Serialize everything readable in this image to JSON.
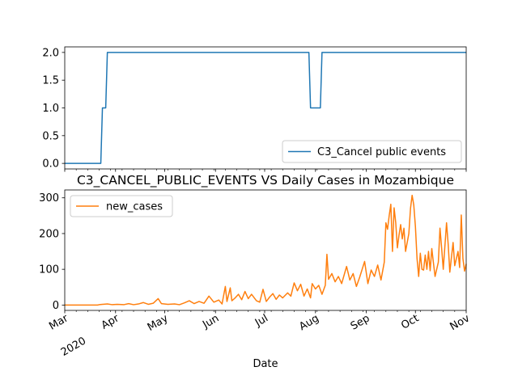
{
  "chart_data": [
    {
      "type": "line",
      "title": "",
      "xlabel": "",
      "ylabel": "",
      "ylim": [
        -0.1,
        2.1
      ],
      "yticks": [
        "0.0",
        "0.5",
        "1.0",
        "1.5",
        "2.0"
      ],
      "ytick_values": [
        0,
        0.5,
        1.0,
        1.5,
        2.0
      ],
      "legend_position": "lower-right",
      "series": [
        {
          "name": "C3_Cancel public events",
          "color": "#1f77b4",
          "points": [
            [
              "2020-03-01",
              0
            ],
            [
              "2020-03-23",
              0
            ],
            [
              "2020-03-24",
              1
            ],
            [
              "2020-03-26",
              1
            ],
            [
              "2020-03-27",
              2
            ],
            [
              "2020-07-28",
              2
            ],
            [
              "2020-07-29",
              1
            ],
            [
              "2020-08-04",
              1
            ],
            [
              "2020-08-05",
              2
            ],
            [
              "2020-11-01",
              2
            ]
          ]
        }
      ]
    },
    {
      "type": "line",
      "title": "C3_CANCEL_PUBLIC_EVENTS VS Daily Cases in Mozambique",
      "xlabel": "Date",
      "ylabel": "",
      "ylim": [
        -15,
        322
      ],
      "yticks": [
        "0",
        "100",
        "200",
        "300"
      ],
      "ytick_values": [
        0,
        100,
        200,
        300
      ],
      "xlim": [
        "2020-03-01",
        "2020-11-01"
      ],
      "xticks": [
        {
          "date": "2020-03-01",
          "label": "Mar",
          "sublabel": "2020"
        },
        {
          "date": "2020-04-01",
          "label": "Apr",
          "sublabel": ""
        },
        {
          "date": "2020-05-01",
          "label": "May",
          "sublabel": ""
        },
        {
          "date": "2020-06-01",
          "label": "Jun",
          "sublabel": ""
        },
        {
          "date": "2020-07-01",
          "label": "Jul",
          "sublabel": ""
        },
        {
          "date": "2020-08-01",
          "label": "Aug",
          "sublabel": ""
        },
        {
          "date": "2020-09-01",
          "label": "Sep",
          "sublabel": ""
        },
        {
          "date": "2020-10-01",
          "label": "Oct",
          "sublabel": ""
        },
        {
          "date": "2020-11-01",
          "label": "Nov",
          "sublabel": ""
        }
      ],
      "legend_position": "upper-left",
      "series": [
        {
          "name": "new_cases",
          "color": "#ff7f0e",
          "points": [
            [
              "2020-03-01",
              0
            ],
            [
              "2020-03-21",
              0
            ],
            [
              "2020-03-22",
              1
            ],
            [
              "2020-03-24",
              2
            ],
            [
              "2020-03-27",
              3
            ],
            [
              "2020-03-30",
              1
            ],
            [
              "2020-04-02",
              2
            ],
            [
              "2020-04-06",
              1
            ],
            [
              "2020-04-09",
              4
            ],
            [
              "2020-04-12",
              1
            ],
            [
              "2020-04-15",
              3
            ],
            [
              "2020-04-18",
              7
            ],
            [
              "2020-04-21",
              2
            ],
            [
              "2020-04-24",
              5
            ],
            [
              "2020-04-27",
              18
            ],
            [
              "2020-04-29",
              4
            ],
            [
              "2020-05-03",
              2
            ],
            [
              "2020-05-07",
              3
            ],
            [
              "2020-05-10",
              1
            ],
            [
              "2020-05-13",
              6
            ],
            [
              "2020-05-16",
              12
            ],
            [
              "2020-05-19",
              4
            ],
            [
              "2020-05-22",
              10
            ],
            [
              "2020-05-25",
              5
            ],
            [
              "2020-05-28",
              25
            ],
            [
              "2020-05-31",
              8
            ],
            [
              "2020-06-03",
              14
            ],
            [
              "2020-06-05",
              3
            ],
            [
              "2020-06-07",
              52
            ],
            [
              "2020-06-08",
              10
            ],
            [
              "2020-06-10",
              48
            ],
            [
              "2020-06-11",
              12
            ],
            [
              "2020-06-13",
              20
            ],
            [
              "2020-06-15",
              30
            ],
            [
              "2020-06-17",
              15
            ],
            [
              "2020-06-19",
              38
            ],
            [
              "2020-06-21",
              18
            ],
            [
              "2020-06-23",
              30
            ],
            [
              "2020-06-26",
              12
            ],
            [
              "2020-06-28",
              8
            ],
            [
              "2020-06-30",
              44
            ],
            [
              "2020-07-02",
              10
            ],
            [
              "2020-07-04",
              22
            ],
            [
              "2020-07-06",
              32
            ],
            [
              "2020-07-08",
              16
            ],
            [
              "2020-07-10",
              28
            ],
            [
              "2020-07-12",
              20
            ],
            [
              "2020-07-15",
              34
            ],
            [
              "2020-07-17",
              25
            ],
            [
              "2020-07-19",
              62
            ],
            [
              "2020-07-21",
              40
            ],
            [
              "2020-07-23",
              58
            ],
            [
              "2020-07-25",
              25
            ],
            [
              "2020-07-27",
              45
            ],
            [
              "2020-07-29",
              20
            ],
            [
              "2020-07-30",
              60
            ],
            [
              "2020-08-01",
              45
            ],
            [
              "2020-08-03",
              55
            ],
            [
              "2020-08-05",
              30
            ],
            [
              "2020-08-07",
              55
            ],
            [
              "2020-08-08",
              142
            ],
            [
              "2020-08-09",
              72
            ],
            [
              "2020-08-11",
              88
            ],
            [
              "2020-08-13",
              65
            ],
            [
              "2020-08-15",
              80
            ],
            [
              "2020-08-17",
              60
            ],
            [
              "2020-08-20",
              108
            ],
            [
              "2020-08-22",
              70
            ],
            [
              "2020-08-24",
              88
            ],
            [
              "2020-08-26",
              52
            ],
            [
              "2020-08-28",
              78
            ],
            [
              "2020-08-31",
              122
            ],
            [
              "2020-09-02",
              60
            ],
            [
              "2020-09-04",
              98
            ],
            [
              "2020-09-06",
              80
            ],
            [
              "2020-09-08",
              112
            ],
            [
              "2020-09-10",
              70
            ],
            [
              "2020-09-12",
              120
            ],
            [
              "2020-09-13",
              230
            ],
            [
              "2020-09-14",
              212
            ],
            [
              "2020-09-15",
              250
            ],
            [
              "2020-09-16",
              282
            ],
            [
              "2020-09-17",
              150
            ],
            [
              "2020-09-18",
              272
            ],
            [
              "2020-09-19",
              230
            ],
            [
              "2020-09-20",
              160
            ],
            [
              "2020-09-21",
              196
            ],
            [
              "2020-09-22",
              225
            ],
            [
              "2020-09-23",
              185
            ],
            [
              "2020-09-24",
              215
            ],
            [
              "2020-09-25",
              150
            ],
            [
              "2020-09-27",
              200
            ],
            [
              "2020-09-28",
              270
            ],
            [
              "2020-09-29",
              307
            ],
            [
              "2020-09-30",
              280
            ],
            [
              "2020-10-01",
              220
            ],
            [
              "2020-10-02",
              130
            ],
            [
              "2020-10-03",
              80
            ],
            [
              "2020-10-04",
              145
            ],
            [
              "2020-10-05",
              100
            ],
            [
              "2020-10-06",
              98
            ],
            [
              "2020-10-07",
              140
            ],
            [
              "2020-10-08",
              100
            ],
            [
              "2020-10-09",
              150
            ],
            [
              "2020-10-10",
              96
            ],
            [
              "2020-10-11",
              158
            ],
            [
              "2020-10-12",
              118
            ],
            [
              "2020-10-13",
              80
            ],
            [
              "2020-10-15",
              120
            ],
            [
              "2020-10-16",
              215
            ],
            [
              "2020-10-17",
              160
            ],
            [
              "2020-10-18",
              100
            ],
            [
              "2020-10-20",
              230
            ],
            [
              "2020-10-21",
              170
            ],
            [
              "2020-10-22",
              92
            ],
            [
              "2020-10-24",
              175
            ],
            [
              "2020-10-25",
              110
            ],
            [
              "2020-10-27",
              150
            ],
            [
              "2020-10-28",
              105
            ],
            [
              "2020-10-29",
              252
            ],
            [
              "2020-10-30",
              130
            ],
            [
              "2020-10-31",
              95
            ],
            [
              "2020-11-01",
              115
            ]
          ]
        }
      ]
    }
  ]
}
